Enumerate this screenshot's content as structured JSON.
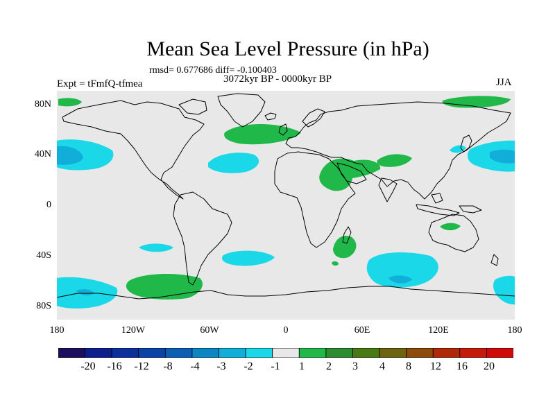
{
  "title": "Mean Sea Level Pressure (in hPa)",
  "stats": "rmsd= 0.677686 diff= -0.100403",
  "period": "3072kyr BP - 0000kyr BP",
  "experiment": "Expt = tFmfQ-tfmea",
  "season": "JJA",
  "y_axis_labels": [
    "80N",
    "40N",
    "0",
    "40S",
    "80S"
  ],
  "x_axis_labels": [
    "180",
    "120W",
    "60W",
    "0",
    "60E",
    "120E",
    "180"
  ],
  "colorbar": {
    "labels": [
      "-20",
      "-16",
      "-12",
      "-8",
      "-4",
      "-3",
      "-2",
      "-1",
      "1",
      "2",
      "3",
      "4",
      "8",
      "12",
      "16",
      "20"
    ],
    "colors": [
      "#1b0f5e",
      "#0e1e8c",
      "#0b2f9c",
      "#0a44a8",
      "#0a5fb4",
      "#0a86c4",
      "#10aed8",
      "#1ad8e8",
      "#e8e8e8",
      "#21b84a",
      "#2e8c30",
      "#4a7a14",
      "#6e6410",
      "#8e4a0c",
      "#b02a0a",
      "#c61a0a",
      "#d00a08"
    ]
  },
  "colors": {
    "background": "#e8e8e8",
    "positive_1_2": "#21b84a",
    "negative_1_2": "#1ad8e8",
    "negative_2_3": "#10aed8",
    "negative_3_4": "#0a86c4"
  }
}
